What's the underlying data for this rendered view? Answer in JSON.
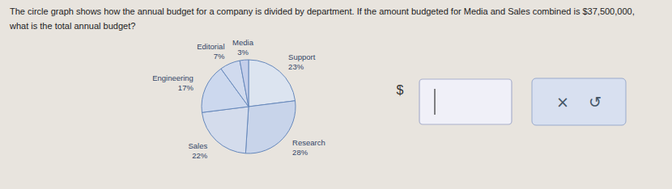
{
  "chart_data": {
    "type": "pie",
    "title": "The circle graph shows how the annual budget for a company is divided by department. If the amount budgeted for Media and Sales combined is $37,500,000,",
    "subtitle": "what is the total annual budget?",
    "categories": [
      "Support",
      "Research",
      "Sales",
      "Engineering",
      "Editorial",
      "Media"
    ],
    "values": [
      23,
      28,
      22,
      17,
      7,
      3
    ],
    "value_labels": [
      "23%",
      "28%",
      "22%",
      "17%",
      "7%",
      "3%"
    ],
    "colors": [
      "#dce4f0",
      "#c8d4ea",
      "#d4dcec",
      "#ccd8ee",
      "#d0daee",
      "#c4ceea"
    ],
    "data_labels": true,
    "annotations": [
      "$",
      "×",
      "↺"
    ]
  }
}
